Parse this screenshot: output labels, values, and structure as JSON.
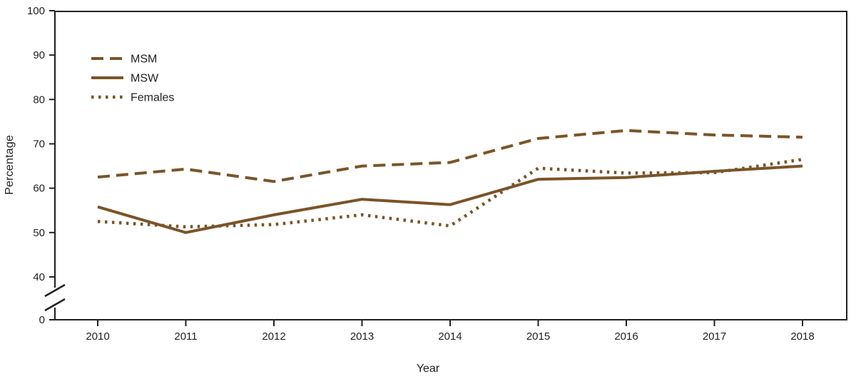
{
  "figure": {
    "background": "#ffffff",
    "frame_color": "#231f20",
    "series_color": "#7a5428",
    "text_color": "#231f20"
  },
  "chart_data": {
    "type": "line",
    "title": "",
    "xlabel": "Year",
    "ylabel": "Percentage",
    "x": [
      2010,
      2011,
      2012,
      2013,
      2014,
      2015,
      2016,
      2017,
      2018
    ],
    "x_tick_labels": [
      "2010",
      "2011",
      "2012",
      "2013",
      "2014",
      "2015",
      "2016",
      "2017",
      "2018"
    ],
    "y_ticks": [
      0,
      40,
      50,
      60,
      70,
      80,
      90,
      100
    ],
    "y_axis_break": true,
    "ylim": [
      0,
      100
    ],
    "grid": false,
    "legend_position": "top-left",
    "series": [
      {
        "name": "MSM",
        "style": "dashed",
        "values": [
          62.5,
          64.3,
          61.5,
          65.0,
          65.8,
          71.2,
          73.0,
          72.0,
          71.5
        ]
      },
      {
        "name": "MSW",
        "style": "solid",
        "values": [
          55.8,
          50.0,
          54.0,
          57.5,
          56.3,
          62.0,
          62.4,
          63.8,
          65.0
        ]
      },
      {
        "name": "Females",
        "style": "dotted",
        "values": [
          52.5,
          51.3,
          51.8,
          54.0,
          51.5,
          64.5,
          63.4,
          63.5,
          66.5
        ]
      }
    ]
  }
}
